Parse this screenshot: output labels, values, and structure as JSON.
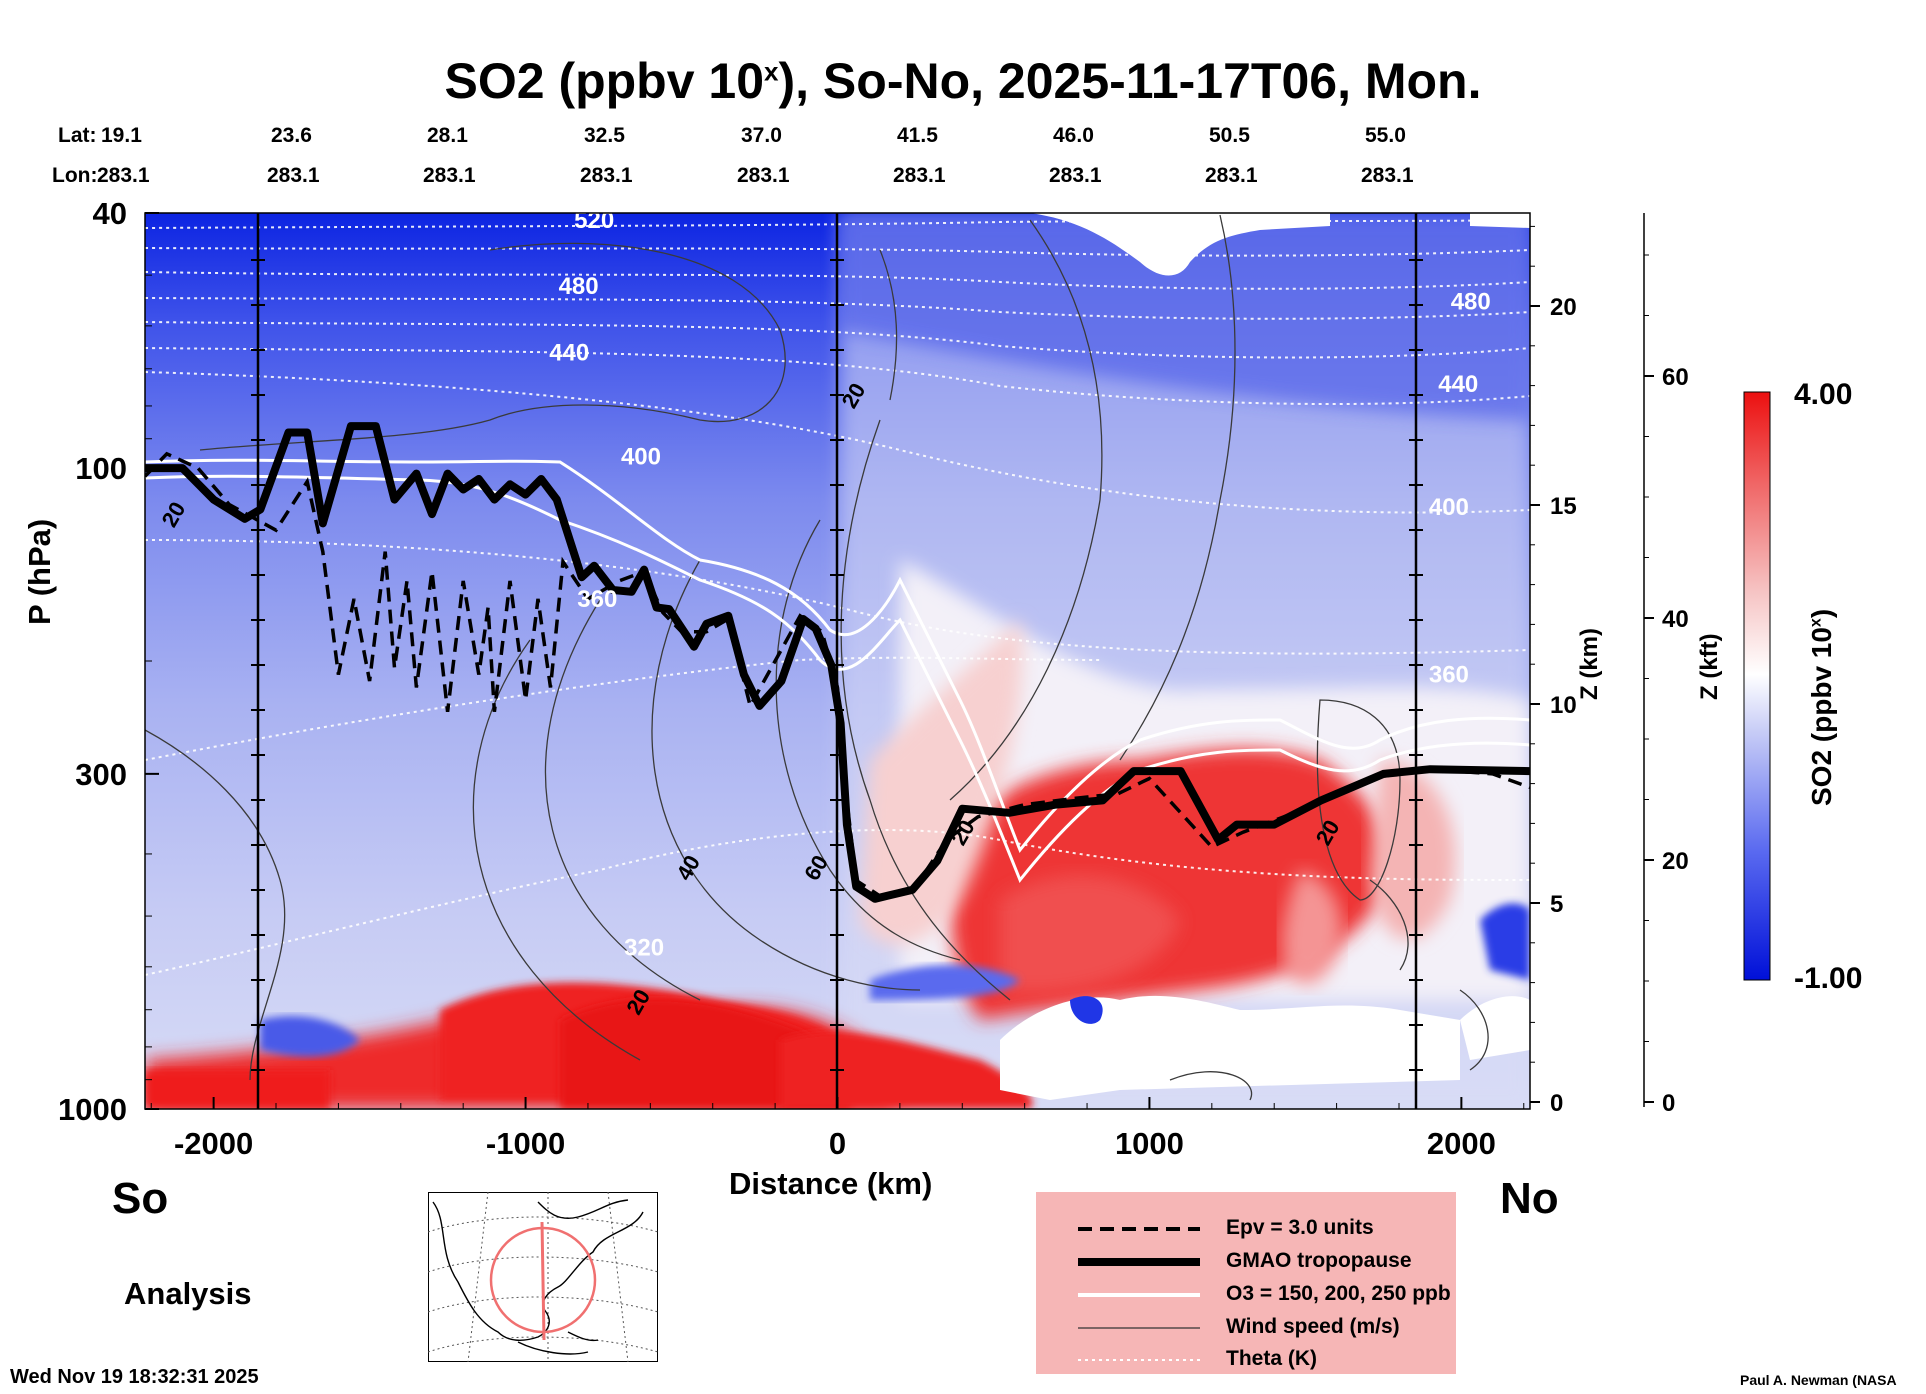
{
  "title": {
    "species": "SO2 (ppbv 10",
    "exp": "x",
    "rest": "), So-No, 2025-11-17T06, Mon."
  },
  "header": {
    "lat_label": "Lat:",
    "lon_label": "Lon:",
    "lats": [
      "19.1",
      "23.6",
      "28.1",
      "32.5",
      "37.0",
      "41.5",
      "46.0",
      "50.5",
      "55.0"
    ],
    "lons": [
      "283.1",
      "283.1",
      "283.1",
      "283.1",
      "283.1",
      "283.1",
      "283.1",
      "283.1",
      "283.1"
    ]
  },
  "chart_data": {
    "type": "heatmap",
    "title": "SO2 (ppbv 10^x), So-No, 2025-11-17T06, Mon.",
    "xlabel": "Distance (km)",
    "ylabel": "P (hPa)",
    "xlim": [
      -2220,
      2220
    ],
    "ylim": [
      1000,
      40
    ],
    "x_ticks": [
      -2000,
      -1000,
      0,
      1000,
      2000
    ],
    "p_ticks": [
      40,
      100,
      300,
      1000
    ],
    "z_km_ticks": [
      0,
      5,
      10,
      15,
      20
    ],
    "z_kft_ticks": [
      0,
      20,
      40,
      60
    ],
    "z_km_label": "Z (km)",
    "z_kft_label": "Z (kft)",
    "colorbar": {
      "min": -1.0,
      "max": 4.0,
      "min_label": "-1.00",
      "max_label": "4.00",
      "label": "SO2 (ppbv 10^x)"
    },
    "theta_labels": [
      {
        "value": "520",
        "x": -780,
        "p": 41
      },
      {
        "value": "480",
        "x": -830,
        "p": 52
      },
      {
        "value": "440",
        "x": -860,
        "p": 66
      },
      {
        "value": "400",
        "x": -630,
        "p": 96
      },
      {
        "value": "360",
        "x": -770,
        "p": 160
      },
      {
        "value": "320",
        "x": -620,
        "p": 560
      },
      {
        "value": "480",
        "x": 2030,
        "p": 55
      },
      {
        "value": "440",
        "x": 1990,
        "p": 74
      },
      {
        "value": "400",
        "x": 1960,
        "p": 115
      },
      {
        "value": "360",
        "x": 1960,
        "p": 210
      }
    ],
    "wind_labels": [
      {
        "value": "20",
        "x": -2130,
        "p": 118
      },
      {
        "value": "20",
        "x": 50,
        "p": 77
      },
      {
        "value": "40",
        "x": -480,
        "p": 420
      },
      {
        "value": "60",
        "x": -70,
        "p": 420
      },
      {
        "value": "20",
        "x": -640,
        "p": 680
      },
      {
        "value": "20",
        "x": 1570,
        "p": 370
      },
      {
        "value": "20",
        "x": 400,
        "p": 370
      }
    ],
    "tropopause_gmao": [
      [
        -2220,
        100
      ],
      [
        -2100,
        100
      ],
      [
        -2000,
        112
      ],
      [
        -1900,
        120
      ],
      [
        -1850,
        116
      ],
      [
        -1760,
        88
      ],
      [
        -1700,
        88
      ],
      [
        -1650,
        122
      ],
      [
        -1560,
        86
      ],
      [
        -1480,
        86
      ],
      [
        -1420,
        112
      ],
      [
        -1350,
        102
      ],
      [
        -1300,
        118
      ],
      [
        -1250,
        102
      ],
      [
        -1200,
        108
      ],
      [
        -1150,
        104
      ],
      [
        -1100,
        112
      ],
      [
        -1050,
        106
      ],
      [
        -1000,
        110
      ],
      [
        -950,
        104
      ],
      [
        -900,
        112
      ],
      [
        -820,
        148
      ],
      [
        -780,
        142
      ],
      [
        -720,
        155
      ],
      [
        -660,
        156
      ],
      [
        -620,
        144
      ],
      [
        -580,
        165
      ],
      [
        -540,
        166
      ],
      [
        -460,
        190
      ],
      [
        -420,
        175
      ],
      [
        -350,
        170
      ],
      [
        -300,
        210
      ],
      [
        -250,
        235
      ],
      [
        -180,
        215
      ],
      [
        -110,
        172
      ],
      [
        -70,
        178
      ],
      [
        -20,
        203
      ],
      [
        10,
        250
      ],
      [
        30,
        360
      ],
      [
        60,
        450
      ],
      [
        120,
        470
      ],
      [
        240,
        455
      ],
      [
        320,
        410
      ],
      [
        400,
        340
      ],
      [
        550,
        345
      ],
      [
        700,
        335
      ],
      [
        850,
        330
      ],
      [
        950,
        297
      ],
      [
        1100,
        297
      ],
      [
        1220,
        380
      ],
      [
        1280,
        360
      ],
      [
        1400,
        360
      ],
      [
        1550,
        330
      ],
      [
        1750,
        300
      ],
      [
        1900,
        295
      ],
      [
        2220,
        297
      ]
    ],
    "tropopause_epv": [
      [
        -2220,
        103
      ],
      [
        -2150,
        95
      ],
      [
        -2050,
        100
      ],
      [
        -1950,
        114
      ],
      [
        -1800,
        125
      ],
      [
        -1700,
        105
      ],
      [
        -1650,
        135
      ],
      [
        -1600,
        210
      ],
      [
        -1550,
        160
      ],
      [
        -1500,
        215
      ],
      [
        -1450,
        135
      ],
      [
        -1420,
        205
      ],
      [
        -1380,
        150
      ],
      [
        -1350,
        220
      ],
      [
        -1300,
        145
      ],
      [
        -1250,
        240
      ],
      [
        -1200,
        150
      ],
      [
        -1150,
        210
      ],
      [
        -1120,
        165
      ],
      [
        -1100,
        240
      ],
      [
        -1050,
        150
      ],
      [
        -1000,
        230
      ],
      [
        -960,
        160
      ],
      [
        -920,
        220
      ],
      [
        -880,
        140
      ],
      [
        -800,
        160
      ],
      [
        -700,
        150
      ],
      [
        -620,
        145
      ],
      [
        -560,
        168
      ],
      [
        -500,
        180
      ],
      [
        -420,
        180
      ],
      [
        -350,
        172
      ],
      [
        -280,
        235
      ],
      [
        -200,
        200
      ],
      [
        -120,
        170
      ],
      [
        -50,
        180
      ],
      [
        0,
        220
      ],
      [
        30,
        330
      ],
      [
        60,
        440
      ],
      [
        150,
        470
      ],
      [
        250,
        450
      ],
      [
        350,
        380
      ],
      [
        450,
        350
      ],
      [
        600,
        335
      ],
      [
        750,
        328
      ],
      [
        900,
        322
      ],
      [
        1000,
        305
      ],
      [
        1200,
        390
      ],
      [
        1300,
        370
      ],
      [
        1500,
        340
      ],
      [
        1700,
        305
      ],
      [
        1900,
        295
      ],
      [
        2100,
        300
      ],
      [
        2220,
        315
      ]
    ],
    "colors": {
      "strong_blue": "#0a22e0",
      "blue": "#4d5cec",
      "light_blue": "#c2c8f4",
      "white": "#ffffff",
      "pink": "#f2a8a8",
      "red": "#ee1c1c",
      "legend_bg": "#f6b6b6"
    }
  },
  "labels": {
    "left_end": "So",
    "right_end": "No",
    "analysis": "Analysis",
    "timestamp": "Wed Nov 19 18:32:31 2025",
    "credit": "Paul A. Newman (NASA"
  },
  "legend": {
    "items": [
      {
        "label": "Epv = 3.0 units"
      },
      {
        "label": "GMAO tropopause"
      },
      {
        "label": "O3 = 150, 200, 250 ppb"
      },
      {
        "label": "Wind speed (m/s)"
      },
      {
        "label": "Theta (K)"
      }
    ]
  }
}
